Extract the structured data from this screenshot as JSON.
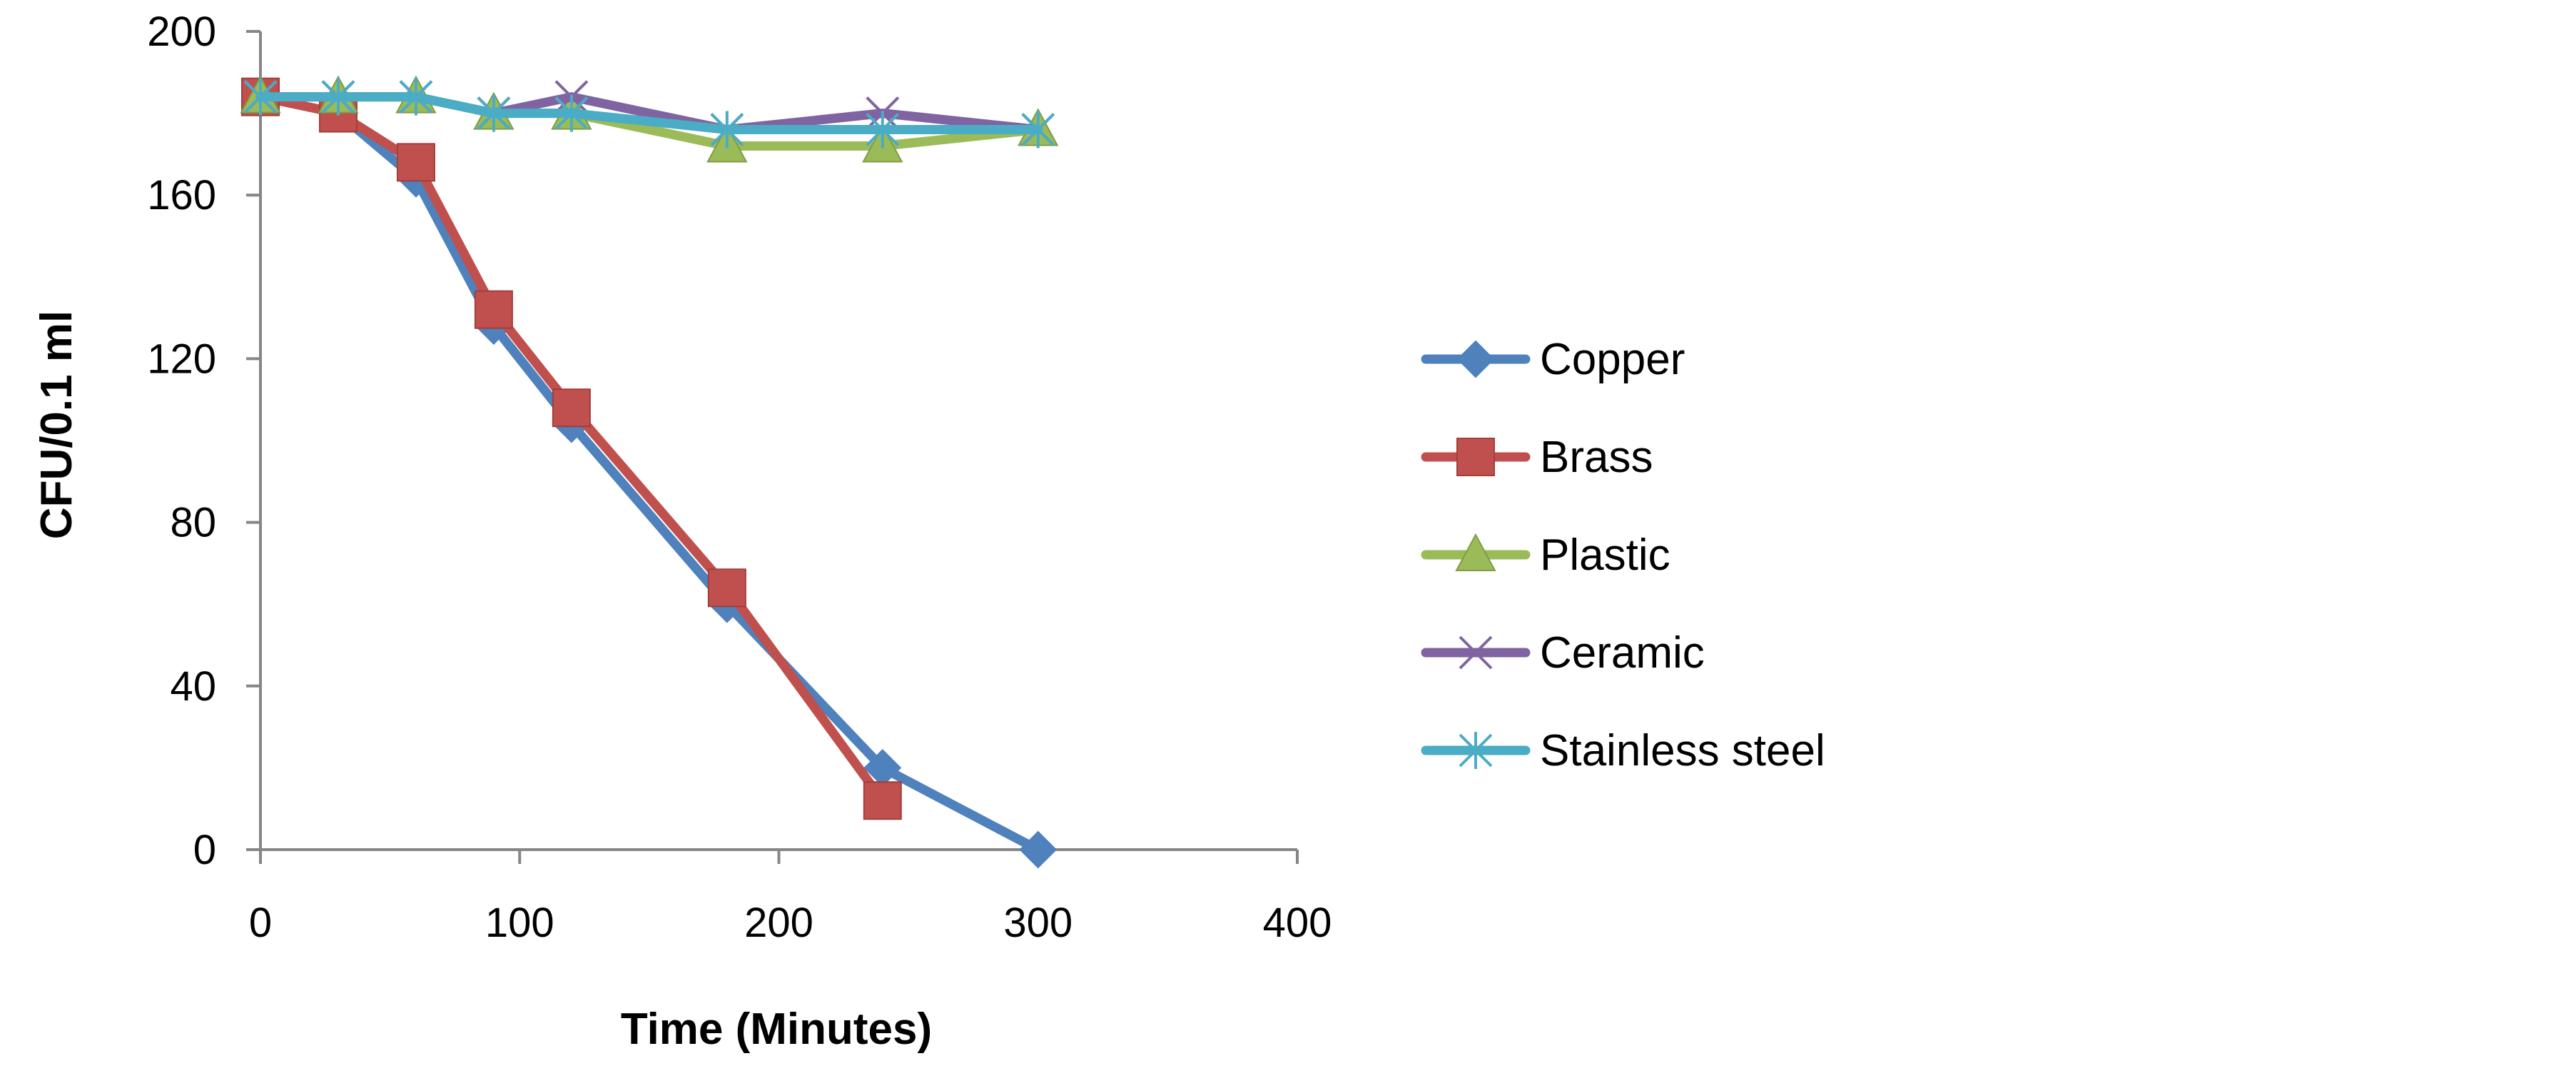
{
  "chart_data": {
    "type": "line",
    "title": "",
    "xlabel": "Time (Minutes)",
    "ylabel": "CFU/0.1 ml",
    "xlim": [
      0,
      400
    ],
    "ylim": [
      0,
      200
    ],
    "xticks": [
      "0",
      "100",
      "200",
      "300",
      "400"
    ],
    "yticks": [
      "0",
      "40",
      "80",
      "120",
      "160",
      "200"
    ],
    "grid": false,
    "legend_position": "right",
    "series": [
      {
        "name": "Copper",
        "color": "#4F81BD",
        "marker": "diamond",
        "x": [
          0,
          30,
          60,
          90,
          120,
          180,
          240,
          300
        ],
        "y": [
          184,
          180,
          164,
          128,
          104,
          60,
          20,
          0
        ]
      },
      {
        "name": "Brass",
        "color": "#C0504D",
        "marker": "square",
        "x": [
          0,
          30,
          60,
          90,
          120,
          180,
          240
        ],
        "y": [
          184,
          180,
          168,
          132,
          108,
          64,
          12
        ]
      },
      {
        "name": "Plastic",
        "color": "#9BBB59",
        "marker": "triangle",
        "x": [
          0,
          30,
          60,
          90,
          120,
          180,
          240,
          300
        ],
        "y": [
          184,
          184,
          184,
          180,
          180,
          172,
          172,
          176
        ]
      },
      {
        "name": "Ceramic",
        "color": "#8064A2",
        "marker": "x",
        "x": [
          0,
          30,
          60,
          90,
          120,
          180,
          240,
          300
        ],
        "y": [
          184,
          184,
          184,
          180,
          184,
          176,
          180,
          176
        ]
      },
      {
        "name": "Stainless steel",
        "color": "#4BACC6",
        "marker": "star",
        "x": [
          0,
          30,
          60,
          90,
          120,
          180,
          240,
          300
        ],
        "y": [
          184,
          184,
          184,
          180,
          180,
          176,
          176,
          176
        ]
      }
    ]
  }
}
